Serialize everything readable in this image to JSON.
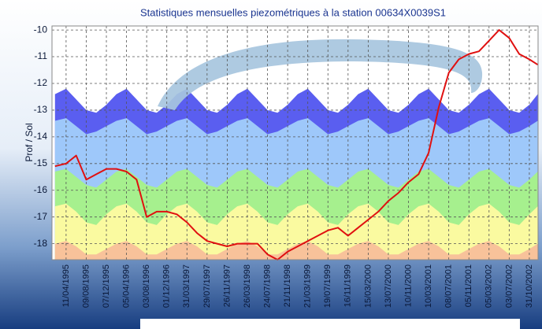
{
  "chart_data": {
    "type": "line",
    "title": "Statistiques mensuelles piezométriques à la station 00634X0039S1",
    "y_label": "Prof / Sol",
    "ylim": [
      -18.6,
      -9.85
    ],
    "yticks": [
      -10,
      -11,
      -12,
      -13,
      -14,
      -15,
      -16,
      -17,
      -18
    ],
    "xlim": [
      "17/01/1995",
      "22/12/2002"
    ],
    "xticks": [
      "11/04/1995",
      "09/08/1995",
      "07/12/1995",
      "05/04/1996",
      "03/08/1996",
      "01/12/1996",
      "31/03/1997",
      "29/07/1997",
      "26/11/1997",
      "26/03/1998",
      "24/07/1998",
      "21/11/1998",
      "21/03/1999",
      "19/07/1999",
      "16/11/1999",
      "15/03/2000",
      "13/07/2000",
      "10/11/2000",
      "10/03/2001",
      "08/07/2001",
      "05/11/2001",
      "05/03/2002",
      "03/07/2002",
      "31/10/2002"
    ],
    "grid": true,
    "x": [
      "04/02/1995",
      "11/04/1995",
      "10/06/1995",
      "09/08/1995",
      "08/10/1995",
      "07/12/1995",
      "05/02/1996",
      "05/04/1996",
      "04/06/1996",
      "03/08/1996",
      "02/10/1996",
      "01/12/1996",
      "30/01/1997",
      "31/03/1997",
      "30/05/1997",
      "29/07/1997",
      "27/09/1997",
      "26/11/1997",
      "25/01/1998",
      "26/03/1998",
      "25/05/1998",
      "24/07/1998",
      "22/09/1998",
      "21/11/1998",
      "20/01/1999",
      "21/03/1999",
      "20/05/1999",
      "19/07/1999",
      "17/09/1999",
      "16/11/1999",
      "15/01/2000",
      "15/03/2000",
      "14/05/2000",
      "13/07/2000",
      "11/09/2000",
      "10/11/2000",
      "09/01/2001",
      "10/03/2001",
      "09/05/2001",
      "08/07/2001",
      "06/09/2001",
      "05/11/2001",
      "04/01/2002",
      "05/03/2002",
      "04/05/2002",
      "03/07/2002",
      "01/09/2002",
      "31/10/2002",
      "20/12/2002"
    ],
    "series": [
      {
        "color": "#5a5ef0",
        "area": true,
        "values": [
          -12.4,
          -12.2,
          -12.6,
          -13.0,
          -13.1,
          -12.8,
          -12.4,
          -12.2,
          -12.6,
          -13.0,
          -13.1,
          -12.8,
          -12.4,
          -12.2,
          -12.6,
          -13.0,
          -13.1,
          -12.8,
          -12.4,
          -12.2,
          -12.6,
          -13.0,
          -13.1,
          -12.8,
          -12.4,
          -12.2,
          -12.6,
          -13.0,
          -13.1,
          -12.8,
          -12.4,
          -12.2,
          -12.6,
          -13.0,
          -13.1,
          -12.8,
          -12.4,
          -12.2,
          -12.6,
          -13.0,
          -13.1,
          -12.8,
          -12.4,
          -12.2,
          -12.6,
          -13.0,
          -13.1,
          -12.8,
          -12.4
        ]
      },
      {
        "color": "#9ec8fa",
        "area": true,
        "values": [
          -13.4,
          -13.3,
          -13.6,
          -13.9,
          -13.8,
          -13.6,
          -13.4,
          -13.3,
          -13.6,
          -13.9,
          -13.8,
          -13.6,
          -13.4,
          -13.3,
          -13.6,
          -13.9,
          -13.8,
          -13.6,
          -13.4,
          -13.3,
          -13.6,
          -13.9,
          -13.8,
          -13.6,
          -13.4,
          -13.3,
          -13.6,
          -13.9,
          -13.8,
          -13.6,
          -13.4,
          -13.3,
          -13.6,
          -13.9,
          -13.8,
          -13.6,
          -13.4,
          -13.3,
          -13.6,
          -13.9,
          -13.8,
          -13.6,
          -13.4,
          -13.3,
          -13.6,
          -13.9,
          -13.8,
          -13.6,
          -13.4
        ]
      },
      {
        "color": "#a6f08e",
        "area": true,
        "values": [
          -15.3,
          -15.2,
          -15.5,
          -15.8,
          -15.9,
          -15.6,
          -15.3,
          -15.2,
          -15.5,
          -15.8,
          -15.9,
          -15.6,
          -15.3,
          -15.2,
          -15.5,
          -15.8,
          -15.9,
          -15.6,
          -15.3,
          -15.2,
          -15.5,
          -15.8,
          -15.9,
          -15.6,
          -15.3,
          -15.2,
          -15.5,
          -15.8,
          -15.9,
          -15.6,
          -15.3,
          -15.2,
          -15.5,
          -15.8,
          -15.9,
          -15.6,
          -15.3,
          -15.2,
          -15.5,
          -15.8,
          -15.9,
          -15.6,
          -15.3,
          -15.2,
          -15.5,
          -15.8,
          -15.9,
          -15.6,
          -15.3
        ]
      },
      {
        "color": "#fafaa0",
        "area": true,
        "values": [
          -16.6,
          -16.5,
          -16.8,
          -17.2,
          -17.3,
          -16.9,
          -16.6,
          -16.5,
          -16.8,
          -17.2,
          -17.3,
          -16.9,
          -16.6,
          -16.5,
          -16.8,
          -17.2,
          -17.3,
          -16.9,
          -16.6,
          -16.5,
          -16.8,
          -17.2,
          -17.3,
          -16.9,
          -16.6,
          -16.5,
          -16.8,
          -17.2,
          -17.3,
          -16.9,
          -16.6,
          -16.5,
          -16.8,
          -17.2,
          -17.3,
          -16.9,
          -16.6,
          -16.5,
          -16.8,
          -17.2,
          -17.3,
          -16.9,
          -16.6,
          -16.5,
          -16.8,
          -17.2,
          -17.3,
          -16.9,
          -16.6
        ]
      },
      {
        "color": "#f8c29a",
        "area": true,
        "values": [
          -18.0,
          -17.9,
          -18.1,
          -18.4,
          -18.4,
          -18.2,
          -18.0,
          -17.9,
          -18.1,
          -18.4,
          -18.4,
          -18.2,
          -18.0,
          -17.9,
          -18.1,
          -18.4,
          -18.4,
          -18.2,
          -18.0,
          -17.9,
          -18.1,
          -18.4,
          -18.4,
          -18.2,
          -18.0,
          -17.9,
          -18.1,
          -18.4,
          -18.4,
          -18.2,
          -18.0,
          -17.9,
          -18.1,
          -18.4,
          -18.4,
          -18.2,
          -18.0,
          -17.9,
          -18.1,
          -18.4,
          -18.4,
          -18.2,
          -18.0,
          -17.9,
          -18.1,
          -18.4,
          -18.4,
          -18.2,
          -18.0
        ]
      },
      {
        "color": "#e01010",
        "area": false,
        "values": [
          -15.1,
          -15.0,
          -14.7,
          -15.6,
          -15.4,
          -15.2,
          -15.2,
          -15.3,
          -15.6,
          -17.0,
          -16.8,
          -16.8,
          -16.9,
          -17.2,
          -17.6,
          -17.9,
          -18.0,
          -18.1,
          -18.0,
          -18.0,
          -18.0,
          -18.4,
          -18.6,
          -18.3,
          -18.1,
          -17.9,
          -17.7,
          -17.5,
          -17.4,
          -17.7,
          -17.4,
          -17.1,
          -16.8,
          -16.4,
          -16.1,
          -15.7,
          -15.4,
          -14.6,
          -12.9,
          -11.6,
          -11.1,
          -10.9,
          -10.8,
          -10.4,
          -10.0,
          -10.3,
          -10.9,
          -11.1,
          -11.3
        ]
      }
    ]
  }
}
